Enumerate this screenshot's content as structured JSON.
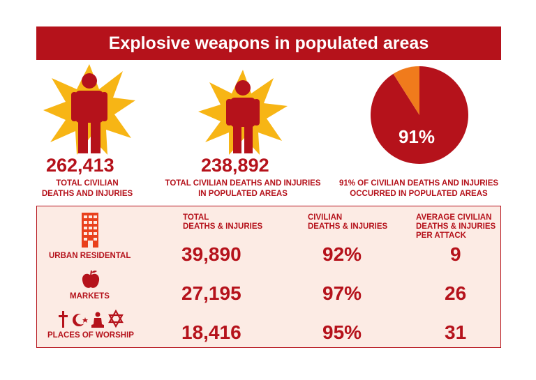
{
  "title": "Explosive weapons in populated areas",
  "stats": [
    {
      "value": "262,413",
      "caption_line1": "TOTAL CIVILIAN",
      "caption_line2": "DEATHS AND INJURIES"
    },
    {
      "value": "238,892",
      "caption_line1": "TOTAL CIVILIAN DEATHS AND INJURIES",
      "caption_line2": "IN POPULATED AREAS"
    },
    {
      "value": "91%",
      "caption_line1": "91% OF CIVILIAN DEATHS AND INJURIES",
      "caption_line2": "OCCURRED IN POPULATED AREAS"
    }
  ],
  "table": {
    "headers": [
      {
        "line1": "TOTAL",
        "line2": "DEATHS & INJURIES",
        "line3": ""
      },
      {
        "line1": "CIVILIAN",
        "line2": "DEATHS & INJURIES",
        "line3": ""
      },
      {
        "line1": "AVERAGE CIVILIAN",
        "line2": "DEATHS & INJURIES",
        "line3": "PER ATTACK"
      }
    ],
    "rows": [
      {
        "label": "URBAN RESIDENTAL",
        "icon": "building-icon",
        "total": "39,890",
        "civilian": "92%",
        "average": "9"
      },
      {
        "label": "MARKETS",
        "icon": "apple-icon",
        "total": "27,195",
        "civilian": "97%",
        "average": "26"
      },
      {
        "label": "PLACES OF WORSHIP",
        "icon": "religious-symbols-icon",
        "total": "18,416",
        "civilian": "95%",
        "average": "31"
      }
    ]
  },
  "colors": {
    "primary": "#b5121b",
    "accent": "#f07b1c",
    "burst": "#f7b515",
    "panel_bg": "#fcebe4"
  },
  "chart_data": {
    "type": "pie",
    "slices": [
      {
        "label": "91%",
        "value": 91,
        "color": "#b5121b"
      },
      {
        "value": 9,
        "color": "#f07b1c"
      }
    ]
  }
}
